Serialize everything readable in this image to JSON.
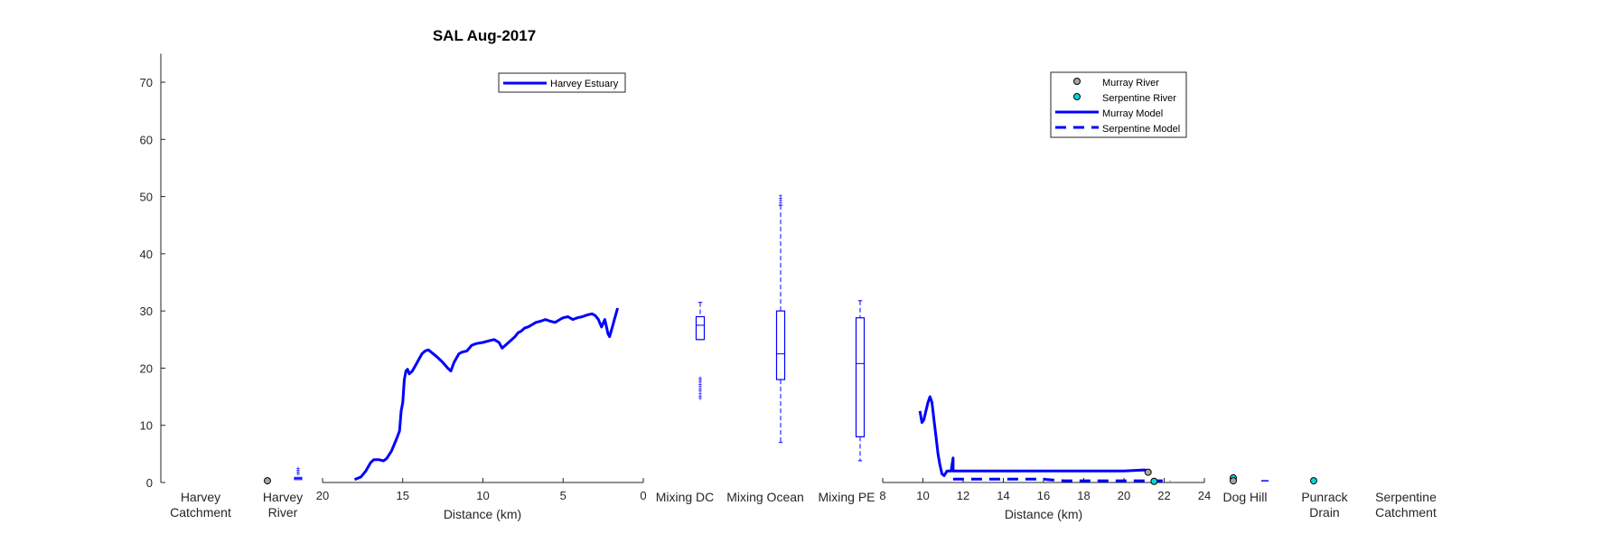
{
  "chart_data": {
    "type": "line",
    "title": "SAL Aug-2017",
    "y_axis": {
      "ylim": [
        0,
        75
      ],
      "ticks": [
        0,
        10,
        20,
        30,
        40,
        50,
        60,
        70
      ]
    },
    "grid": false,
    "colors": {
      "series": "#0000ff",
      "axis": "#262626",
      "text": "#262626",
      "murray_marker": "#a6a6a6",
      "serpentine_marker": "#00d9d9"
    },
    "category_labels": [
      {
        "lines": [
          "Harvey",
          "Catchment"
        ]
      },
      {
        "lines": [
          "Harvey",
          "River"
        ]
      },
      {
        "lines": [
          "Mixing DC"
        ]
      },
      {
        "lines": [
          "Mixing Ocean"
        ]
      },
      {
        "lines": [
          "Mixing PE"
        ]
      },
      {
        "lines": [
          "Dog Hill"
        ]
      },
      {
        "lines": [
          "Punrack",
          "Drain"
        ]
      },
      {
        "lines": [
          "Serpentine",
          "Catchment"
        ]
      }
    ],
    "harvey_river": {
      "point": 0.3,
      "box": {
        "min": 0.4,
        "q1": 0.5,
        "median": 0.7,
        "q3": 0.9,
        "max": 1.3,
        "outliers": [
          1.6,
          1.9,
          2.2,
          2.5
        ]
      }
    },
    "harvey_estuary": {
      "legend": "Harvey Estuary",
      "xlabel": "Distance (km)",
      "xlim": [
        20,
        0
      ],
      "xticks": [
        20,
        15,
        10,
        5,
        0
      ],
      "x": [
        18.0,
        17.6,
        17.3,
        17.0,
        16.8,
        16.5,
        16.2,
        16.0,
        15.7,
        15.4,
        15.2,
        15.1,
        15.0,
        14.9,
        14.8,
        14.7,
        14.6,
        14.4,
        14.2,
        14.0,
        13.8,
        13.6,
        13.4,
        13.1,
        12.8,
        12.5,
        12.2,
        12.0,
        11.8,
        11.6,
        11.5,
        11.3,
        11.0,
        10.7,
        10.4,
        10.0,
        9.6,
        9.3,
        9.0,
        8.8,
        8.6,
        8.4,
        8.2,
        8.0,
        7.8,
        7.6,
        7.4,
        7.2,
        7.0,
        6.7,
        6.4,
        6.1,
        5.8,
        5.5,
        5.2,
        5.0,
        4.7,
        4.4,
        4.1,
        3.8,
        3.5,
        3.2,
        3.0,
        2.8,
        2.6,
        2.4,
        2.2,
        2.1,
        2.0,
        1.9,
        1.8,
        1.7,
        1.6
      ],
      "y": [
        0.5,
        1.0,
        2.0,
        3.5,
        4.0,
        4.0,
        3.8,
        4.2,
        5.5,
        7.5,
        9.0,
        12.5,
        14.0,
        18.0,
        19.5,
        19.8,
        19.0,
        19.5,
        20.5,
        21.5,
        22.5,
        23.0,
        23.2,
        22.5,
        21.8,
        21.0,
        20.0,
        19.5,
        21.0,
        22.0,
        22.5,
        22.8,
        23.0,
        24.0,
        24.3,
        24.5,
        24.8,
        25.0,
        24.5,
        23.5,
        24.0,
        24.5,
        25.0,
        25.5,
        26.2,
        26.5,
        27.0,
        27.2,
        27.5,
        28.0,
        28.2,
        28.5,
        28.2,
        28.0,
        28.5,
        28.8,
        29.0,
        28.5,
        28.8,
        29.0,
        29.3,
        29.5,
        29.2,
        28.5,
        27.2,
        28.5,
        26.0,
        25.5,
        26.5,
        27.5,
        28.5,
        29.5,
        30.5
      ]
    },
    "mixing_boxes": [
      {
        "name": "Mixing DC",
        "min": 25.0,
        "q1": 25.0,
        "median": 27.5,
        "q3": 29.0,
        "max": 31.5,
        "outliers": [
          14.8,
          15.2,
          15.6,
          16.0,
          16.4,
          16.8,
          17.2,
          17.6,
          18.0,
          18.3
        ]
      },
      {
        "name": "Mixing Ocean",
        "min": 7.0,
        "q1": 18.0,
        "median": 22.5,
        "q3": 30.0,
        "max": 48.5,
        "outliers": [
          49.0,
          49.4,
          49.8,
          50.2
        ]
      },
      {
        "name": "Mixing PE",
        "min": 3.8,
        "q1": 8.0,
        "median": 20.8,
        "q3": 28.8,
        "max": 31.8,
        "outliers": []
      }
    ],
    "rivers_panel": {
      "xlabel": "Distance (km)",
      "xlim": [
        8,
        24
      ],
      "xticks": [
        8,
        10,
        12,
        14,
        16,
        18,
        20,
        22,
        24
      ],
      "legend": [
        "Murray River",
        "Serpentine River",
        "Murray Model",
        "Serpentine Model"
      ],
      "murray_model": {
        "x": [
          9.85,
          9.95,
          10.05,
          10.15,
          10.25,
          10.35,
          10.45,
          10.55,
          10.65,
          10.75,
          10.85,
          10.95,
          11.05,
          11.2,
          11.4,
          11.5,
          11.5,
          11.6,
          12.0,
          14.0,
          16.0,
          18.0,
          20.0,
          21.0,
          21.3
        ],
        "y": [
          12.5,
          10.5,
          11.0,
          12.5,
          14.0,
          15.0,
          14.0,
          11.0,
          8.0,
          5.0,
          3.0,
          1.5,
          1.2,
          2.0,
          2.0,
          4.3,
          2.0,
          2.0,
          2.0,
          2.0,
          2.0,
          2.0,
          2.0,
          2.2,
          2.0
        ]
      },
      "serpentine_model": {
        "x": [
          11.5,
          12.0,
          13.0,
          14.0,
          15.0,
          16.0,
          16.2,
          17.0,
          18.0,
          19.0,
          20.0,
          21.0,
          22.0,
          22.3
        ],
        "y": [
          0.6,
          0.6,
          0.6,
          0.6,
          0.6,
          0.6,
          0.5,
          0.3,
          0.3,
          0.3,
          0.3,
          0.3,
          0.3,
          0.2
        ]
      },
      "murray_points": [
        {
          "x": 21.2,
          "y": 1.8
        }
      ],
      "serpentine_points": [
        {
          "x": 21.5,
          "y": 0.2
        }
      ]
    },
    "dog_hill": {
      "murray_point": 0.3,
      "serpentine_point": 0.8,
      "model_value": 0.3
    },
    "punrack_drain": {
      "serpentine_point": 0.3
    }
  }
}
